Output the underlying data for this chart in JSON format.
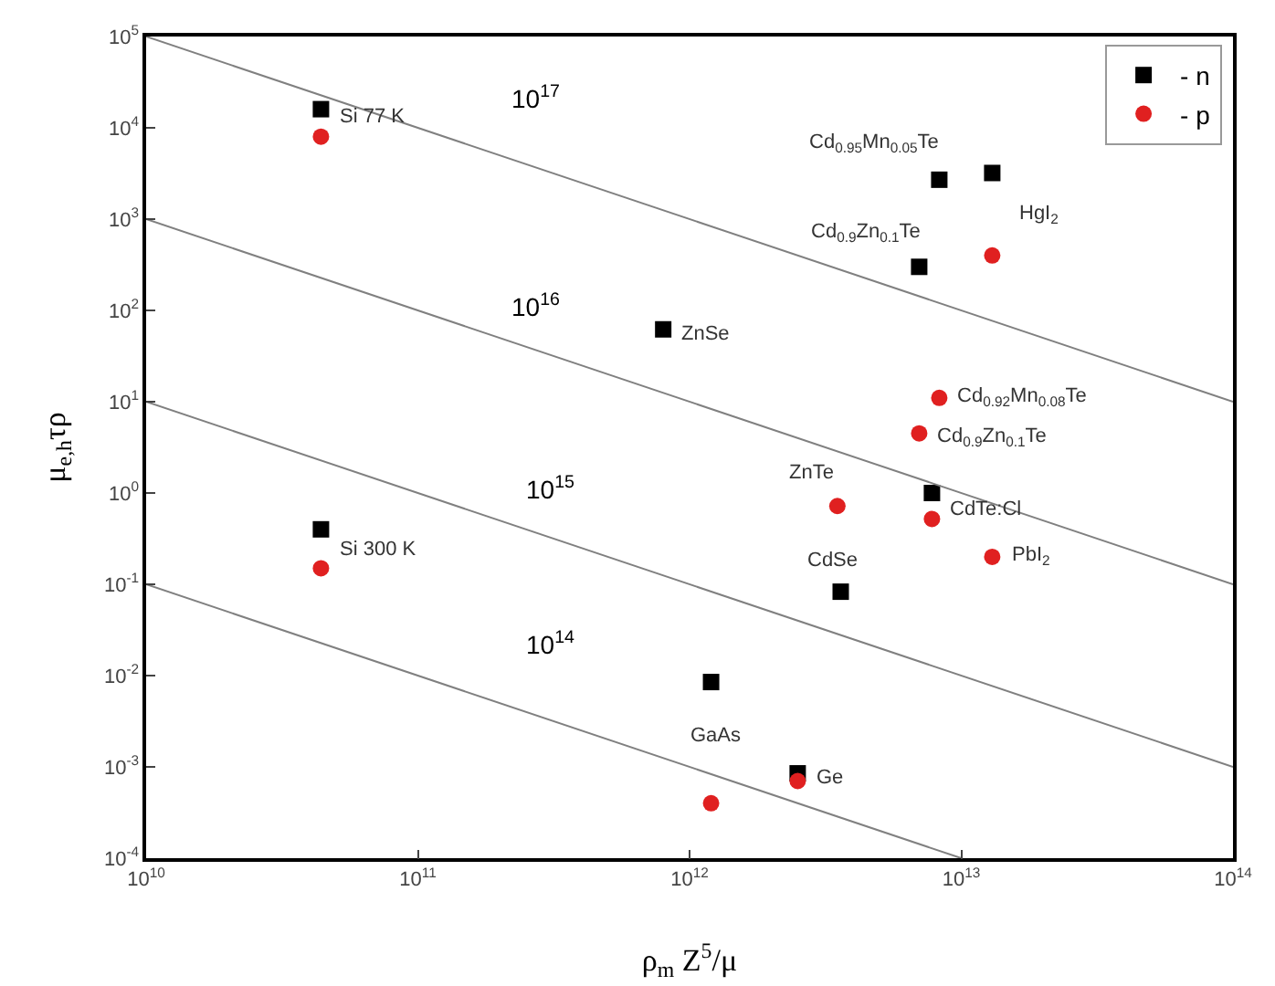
{
  "chart_data": {
    "type": "scatter",
    "xlabel": "ρ$_{m}$ Z$^{5}$/μ",
    "ylabel": "μ$_{e,h}$τρ",
    "log": "xy",
    "grid": false,
    "legend": "top right",
    "xlim": [
      10000000000.0,
      100000000000000.0
    ],
    "xticks": [
      {
        "value": 10000000000.0,
        "label": "10$^{10}$"
      },
      {
        "value": 100000000000.0,
        "label": "10$^{11}$"
      },
      {
        "value": 1000000000000.0,
        "label": "10$^{12}$"
      },
      {
        "value": 10000000000000.0,
        "label": "10$^{13}$"
      },
      {
        "value": 100000000000000.0,
        "label": "10$^{14}$"
      }
    ],
    "ylim": [
      0.0001,
      100000.0
    ],
    "yticks": [
      {
        "value": 0.0001,
        "label": "10$^{-4}$"
      },
      {
        "value": 0.001,
        "label": "10$^{-3}$"
      },
      {
        "value": 0.01,
        "label": "10$^{-2}$"
      },
      {
        "value": 0.1,
        "label": "10$^{-1}$"
      },
      {
        "value": 1,
        "label": "10$^{0}$"
      },
      {
        "value": 10,
        "label": "10$^{1}$"
      },
      {
        "value": 100,
        "label": "10$^{2}$"
      },
      {
        "value": 1000,
        "label": "10$^{3}$"
      },
      {
        "value": 10000.0,
        "label": "10$^{4}$"
      },
      {
        "value": 100000.0,
        "label": "10$^{5}$"
      }
    ],
    "series": [
      {
        "name": "- n",
        "color": "#000000",
        "marker": "square",
        "x": [
          44000000000.0,
          44000000000.0,
          800000000000.0,
          8300000000000.0,
          13000000000000.0,
          7000000000000.0,
          7800000000000.0,
          3600000000000.0,
          1200000000000.0,
          2500000000000.0
        ],
        "values": [
          16000,
          0.4,
          62,
          2700,
          3200,
          300,
          1,
          0.083,
          0.0085,
          0.00085
        ]
      },
      {
        "name": "- p",
        "color": "#e02020",
        "marker": "circle",
        "x": [
          44000000000.0,
          44000000000.0,
          13000000000000.0,
          8300000000000.0,
          7000000000000.0,
          3500000000000.0,
          7800000000000.0,
          13000000000000.0,
          1200000000000.0,
          2500000000000.0
        ],
        "values": [
          8000,
          0.15,
          400,
          11,
          4.5,
          0.72,
          0.52,
          0.2,
          0.0004,
          0.0007
        ]
      },
      {
        "type": "line",
        "color": "#808080",
        "x": [
          10000000000.0,
          100000000000000.0
        ],
        "values": [
          100000.0,
          10
        ]
      },
      {
        "type": "line",
        "color": "#808080",
        "x": [
          10000000000.0,
          100000000000000.0
        ],
        "values": [
          1000,
          0.1
        ]
      },
      {
        "type": "line",
        "color": "#808080",
        "x": [
          10000000000.0,
          100000000000000.0
        ],
        "values": [
          10,
          0.001
        ]
      },
      {
        "type": "line",
        "color": "#808080",
        "x": [
          10000000000.0,
          10000000000000.0
        ],
        "values": [
          0.1,
          0.0001
        ]
      }
    ],
    "annotations": [
      "10$^{17}$",
      "10$^{16}$",
      "10$^{15}$",
      "10$^{14}$",
      {
        "text": "Si 77 K",
        "x": 44000000000.0,
        "y": 16000
      },
      {
        "text": "Si 300 K",
        "x": 44000000000.0,
        "y": 0.4
      },
      {
        "text": "ZnSe",
        "x": 800000000000.0,
        "y": 62
      },
      {
        "text": "Cd$_{0.95}$Mn$_{0.05}$Te",
        "x": 8300000000000.0,
        "y": 2700
      },
      {
        "text": "Cd$_{0.9}$Zn$_{0.1}$Te",
        "x": 7000000000000.0,
        "y": 300
      },
      {
        "text": "HgI$_{2}$",
        "x": 13000000000000.0,
        "y": 400
      },
      {
        "text": "Cd$_{0.92}$Mn$_{0.08}$Te",
        "x": 8300000000000.0,
        "y": 11
      },
      {
        "text": "Cd$_{0.9}$Zn$_{0.1}$Te",
        "x": 7000000000000.0,
        "y": 4.5
      },
      {
        "text": "ZnTe",
        "x": 3500000000000.0,
        "y": 0.72
      },
      {
        "text": "CdTe:Cl",
        "x": 7800000000000.0,
        "y": 1
      },
      {
        "text": "PbI$_{2}$",
        "x": 13000000000000.0,
        "y": 0.2
      },
      {
        "text": "CdSe",
        "x": 3600000000000.0,
        "y": 0.083
      },
      {
        "text": "GaAs",
        "x": 1200000000000.0,
        "y": 0.0085
      },
      {
        "text": "Ge",
        "x": 2500000000000.0,
        "y": 0.00085
      }
    ]
  }
}
